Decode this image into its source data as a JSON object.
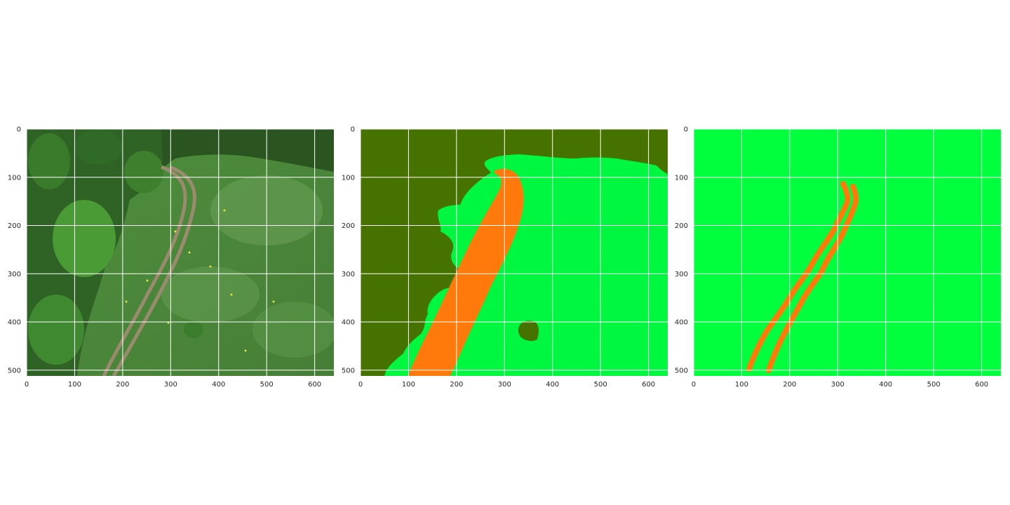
{
  "chart_data": [
    {
      "type": "image",
      "xlim": [
        0,
        640
      ],
      "ylim": [
        512,
        0
      ],
      "xticks": [
        0,
        100,
        200,
        300,
        400,
        500,
        600
      ],
      "yticks": [
        0,
        100,
        200,
        300,
        400,
        500
      ],
      "grid": true,
      "colors": {
        "forest": "#2f5a25",
        "tree": "#3c8a2f",
        "grass": "#4a8a3a",
        "grass_light": "#6aa05a",
        "path": "#9a8a6e",
        "flower": "#e6e040"
      }
    },
    {
      "type": "image",
      "xlim": [
        0,
        640
      ],
      "ylim": [
        512,
        0
      ],
      "xticks": [
        0,
        100,
        200,
        300,
        400,
        500,
        600
      ],
      "yticks": [
        0,
        100,
        200,
        300,
        400,
        500
      ],
      "grid": true,
      "colors": {
        "forest": "#467300",
        "grass": "#00f740",
        "path": "#ff7a0a"
      }
    },
    {
      "type": "image",
      "xlim": [
        0,
        640
      ],
      "ylim": [
        512,
        0
      ],
      "xticks": [
        0,
        100,
        200,
        300,
        400,
        500,
        600
      ],
      "yticks": [
        0,
        100,
        200,
        300,
        400,
        500
      ],
      "grid": true,
      "colors": {
        "grass": "#00ff3d",
        "track": "#ff7a0a"
      }
    }
  ]
}
